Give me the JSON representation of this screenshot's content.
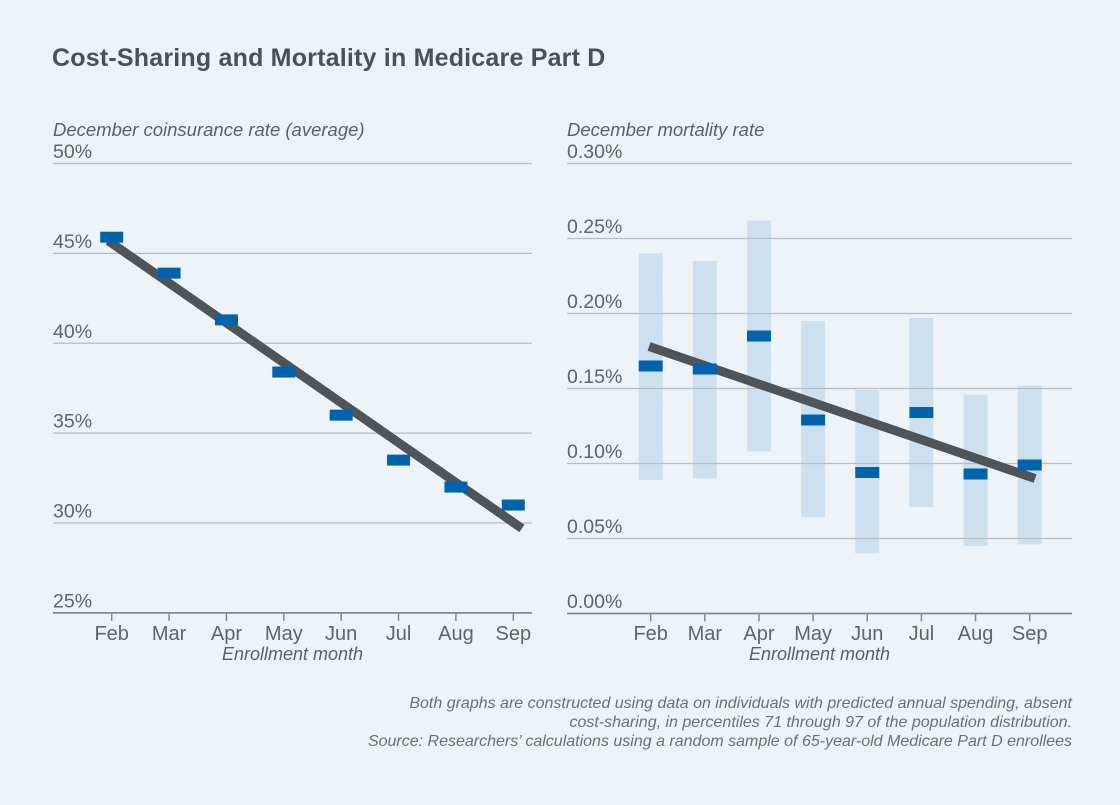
{
  "figure": {
    "title": "Cost-Sharing and Mortality in Medicare Part D",
    "footnote_lines": [
      "Both graphs are constructed using data on individuals with predicted annual spending, absent",
      "cost-sharing, in percentiles 71 through 97 of the population distribution.",
      "Source: Researchers’ calculations using a random sample of 65-year-old Medicare Part D enrollees"
    ]
  },
  "colors": {
    "background": "#eef3f8",
    "title_text": "#4b5055",
    "point_blue": "#0063ac",
    "ci_light_blue": "#cde0ef",
    "trend_gray": "#4f5458",
    "gridline": "#b9bcc0",
    "axis_line": "#84888c",
    "tick_text": "#5f6468",
    "footnote_text": "#6b7075"
  },
  "chart_data": [
    {
      "type": "scatter",
      "marker": "bar",
      "title": "December coinsurance rate (average)",
      "xlabel": "Enrollment month",
      "categories": [
        "Feb",
        "Mar",
        "Apr",
        "May",
        "Jun",
        "Jul",
        "Aug",
        "Sep"
      ],
      "values": [
        45.9,
        43.9,
        41.3,
        38.4,
        36.0,
        33.5,
        32.0,
        31.0
      ],
      "ylim": [
        25,
        50
      ],
      "ytick_values": [
        50,
        45,
        40,
        35,
        30,
        25
      ],
      "ytick_labels": [
        "50%",
        "45%",
        "40%",
        "35%",
        "30%",
        "25%"
      ],
      "grid": true,
      "legend": "none",
      "trend": {
        "x1": -0.06,
        "y1": 45.7,
        "x2": 7.15,
        "y2": 29.7
      }
    },
    {
      "type": "scatter",
      "marker": "bar",
      "title": "December mortality rate",
      "xlabel": "Enrollment month",
      "categories": [
        "Feb",
        "Mar",
        "Apr",
        "May",
        "Jun",
        "Jul",
        "Aug",
        "Sep"
      ],
      "values": [
        0.165,
        0.163,
        0.185,
        0.129,
        0.094,
        0.134,
        0.093,
        0.099
      ],
      "ci_low": [
        0.089,
        0.09,
        0.108,
        0.064,
        0.04,
        0.071,
        0.045,
        0.046
      ],
      "ci_high": [
        0.24,
        0.235,
        0.262,
        0.195,
        0.149,
        0.197,
        0.146,
        0.152
      ],
      "ylim": [
        0,
        0.3
      ],
      "ytick_values": [
        0.3,
        0.25,
        0.2,
        0.15,
        0.1,
        0.05,
        0.0
      ],
      "ytick_labels": [
        "0.30%",
        "0.25%",
        "0.20%",
        "0.15%",
        "0.10%",
        "0.05%",
        "0.00%"
      ],
      "grid": true,
      "legend": "none",
      "trend": {
        "x1": -0.03,
        "y1": 0.178,
        "x2": 7.1,
        "y2": 0.09
      }
    }
  ]
}
